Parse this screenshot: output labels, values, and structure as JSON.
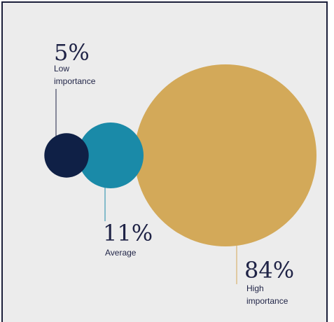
{
  "chart_data": {
    "type": "bubble",
    "categories": [
      "Low importance",
      "Average",
      "High importance"
    ],
    "values": [
      5,
      11,
      84
    ],
    "value_labels": [
      "5%",
      "11%",
      "84%"
    ],
    "label_lines": [
      [
        "Low",
        "importance"
      ],
      [
        "Average"
      ],
      [
        "High",
        "importance"
      ]
    ],
    "colors": [
      "#0f2046",
      "#1a8aa8",
      "#d3a959"
    ],
    "title": "",
    "xlabel": "",
    "ylabel": ""
  }
}
